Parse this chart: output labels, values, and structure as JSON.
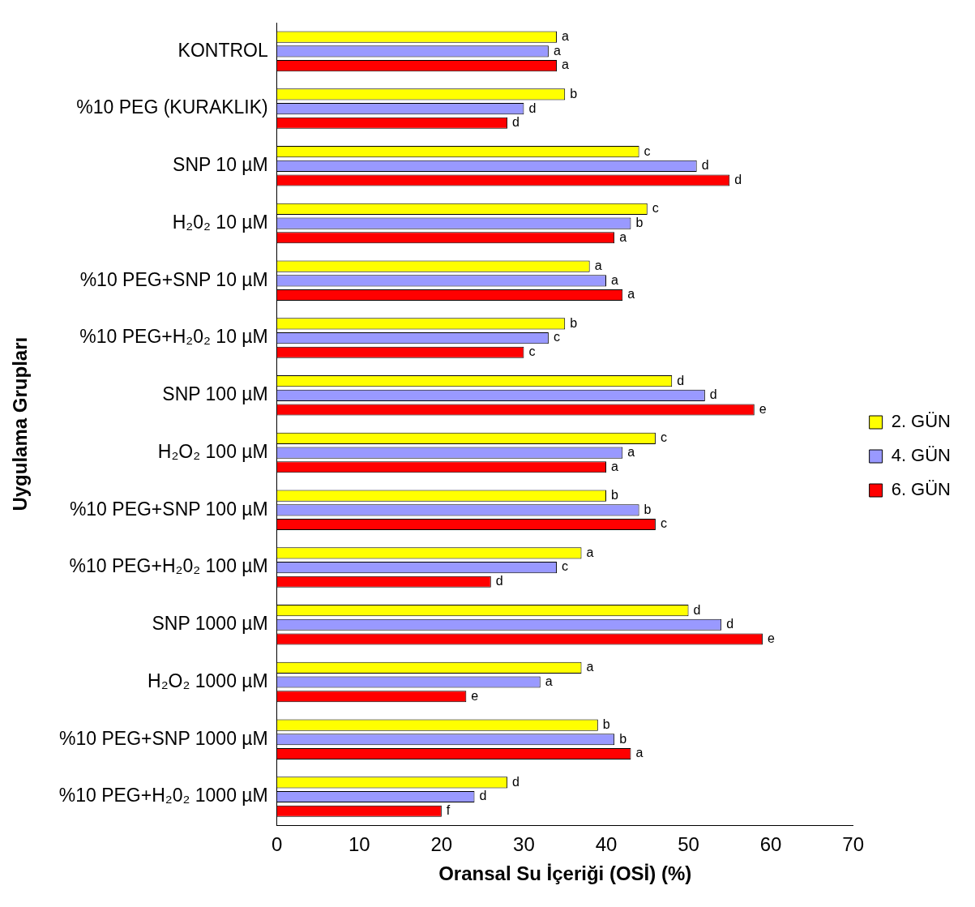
{
  "chart_data": {
    "type": "bar",
    "orientation": "horizontal",
    "xlabel": "Oransal Su İçeriği (OSİ) (%)",
    "ylabel": "Uygulama Grupları",
    "categories": [
      "KONTROL",
      "%10 PEG (KURAKLIK)",
      "SNP 10 µM",
      "H₂0₂ 10 µM",
      "%10 PEG+SNP 10 µM",
      "%10 PEG+H₂0₂ 10 µM",
      "SNP 100 µM",
      "H₂O₂ 100 µM",
      "%10 PEG+SNP 100 µM",
      "%10 PEG+H₂0₂ 100 µM",
      "SNP 1000 µM",
      "H₂O₂ 1000 µM",
      "%10 PEG+SNP 1000 µM",
      "%10 PEG+H₂0₂ 1000 µM"
    ],
    "series": [
      {
        "name": "2. GÜN",
        "color": "#ffff00",
        "values": [
          34,
          35,
          44,
          45,
          38,
          35,
          48,
          46,
          40,
          37,
          50,
          37,
          39,
          28
        ],
        "value_labels": [
          "a",
          "b",
          "c",
          "c",
          "a",
          "b",
          "d",
          "c",
          "b",
          "a",
          "d",
          "a",
          "b",
          "d"
        ]
      },
      {
        "name": "4. GÜN",
        "color": "#9999ff",
        "values": [
          33,
          30,
          51,
          43,
          40,
          33,
          52,
          42,
          44,
          34,
          54,
          32,
          41,
          24
        ],
        "value_labels": [
          "a",
          "d",
          "d",
          "b",
          "a",
          "c",
          "d",
          "a",
          "b",
          "c",
          "d",
          "a",
          "b",
          "d"
        ]
      },
      {
        "name": "6. GÜN",
        "color": "#ff0000",
        "values": [
          34,
          28,
          55,
          41,
          42,
          30,
          58,
          40,
          46,
          26,
          59,
          23,
          43,
          20
        ],
        "value_labels": [
          "a",
          "d",
          "d",
          "a",
          "a",
          "c",
          "e",
          "a",
          "c",
          "d",
          "e",
          "e",
          "a",
          "f"
        ]
      }
    ],
    "xlim": [
      0,
      70
    ],
    "xticks": [
      0,
      10,
      20,
      30,
      40,
      50,
      60,
      70
    ],
    "grid": false,
    "legend": "right"
  }
}
